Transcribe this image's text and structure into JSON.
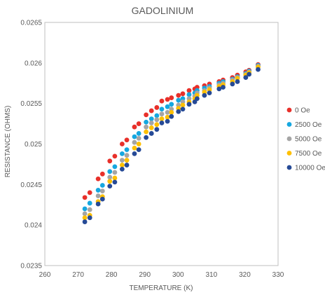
{
  "chart_data": {
    "type": "scatter",
    "title": "GADOLINIUM",
    "xlabel": "TEMPERATURE (K)",
    "ylabel": "RESISTANCE (OHMS)",
    "xlim": [
      260,
      330
    ],
    "ylim": [
      0.0235,
      0.0265
    ],
    "x_ticks": [
      "260",
      "270",
      "280",
      "290",
      "300",
      "310",
      "320",
      "330"
    ],
    "y_ticks": [
      "0.0235",
      "0.024",
      "0.0245",
      "0.025",
      "0.0255",
      "0.026",
      "0.0265"
    ],
    "grid": false,
    "legend_position": "right",
    "x": [
      272,
      273.5,
      276,
      277.3,
      279.5,
      281,
      283.2,
      284.6,
      286.9,
      288.2,
      290.4,
      292,
      293.6,
      295.1,
      296.8,
      298,
      300.1,
      301.4,
      303.3,
      305,
      305.7,
      307.9,
      309.4,
      312.3,
      313.5,
      316.3,
      317.8,
      320.3,
      321.3,
      324
    ],
    "series": [
      {
        "name": "0 Oe",
        "color": "#e8302a",
        "values": [
          0.02434,
          0.0244,
          0.02457,
          0.02463,
          0.02479,
          0.02485,
          0.025,
          0.02505,
          0.02521,
          0.02525,
          0.02536,
          0.02541,
          0.02545,
          0.02553,
          0.02555,
          0.02557,
          0.0256,
          0.02562,
          0.02566,
          0.02568,
          0.0257,
          0.02572,
          0.02574,
          0.02577,
          0.02579,
          0.02582,
          0.02585,
          0.02589,
          0.02591,
          0.02598
        ]
      },
      {
        "name": "2500 Oe",
        "color": "#15a7e0",
        "values": [
          0.0242,
          0.02427,
          0.02443,
          0.02449,
          0.02466,
          0.02472,
          0.02488,
          0.02493,
          0.02509,
          0.02513,
          0.02527,
          0.02531,
          0.02535,
          0.02543,
          0.02546,
          0.02549,
          0.02554,
          0.02556,
          0.02561,
          0.02563,
          0.02566,
          0.02569,
          0.02571,
          0.02575,
          0.02577,
          0.0258,
          0.02583,
          0.02587,
          0.0259,
          0.02597
        ]
      },
      {
        "name": "5000 Oe",
        "color": "#a5a5a5",
        "values": [
          0.02414,
          0.02419,
          0.02436,
          0.02442,
          0.02459,
          0.02465,
          0.0248,
          0.02486,
          0.02502,
          0.02507,
          0.02521,
          0.02526,
          0.0253,
          0.02537,
          0.02539,
          0.02543,
          0.02548,
          0.02552,
          0.02556,
          0.02559,
          0.02563,
          0.02566,
          0.02569,
          0.02573,
          0.02575,
          0.02579,
          0.02582,
          0.02586,
          0.02589,
          0.02596
        ]
      },
      {
        "name": "7500 Oe",
        "color": "#ffc000",
        "values": [
          0.02409,
          0.02412,
          0.02429,
          0.02435,
          0.02454,
          0.02458,
          0.02474,
          0.0248,
          0.02495,
          0.025,
          0.02515,
          0.0252,
          0.02524,
          0.02531,
          0.02533,
          0.02539,
          0.02544,
          0.02548,
          0.02552,
          0.02556,
          0.0256,
          0.02564,
          0.02567,
          0.02571,
          0.02573,
          0.02577,
          0.02581,
          0.02585,
          0.02588,
          0.02595
        ]
      },
      {
        "name": "10000 Oe",
        "color": "#264a96",
        "values": [
          0.02404,
          0.02409,
          0.02426,
          0.02432,
          0.02448,
          0.02453,
          0.02469,
          0.02474,
          0.02488,
          0.02493,
          0.02508,
          0.02513,
          0.02518,
          0.02526,
          0.02528,
          0.02534,
          0.0254,
          0.02543,
          0.02549,
          0.02552,
          0.02556,
          0.0256,
          0.02563,
          0.02568,
          0.0257,
          0.02574,
          0.02577,
          0.02582,
          0.02586,
          0.02592
        ]
      }
    ]
  }
}
